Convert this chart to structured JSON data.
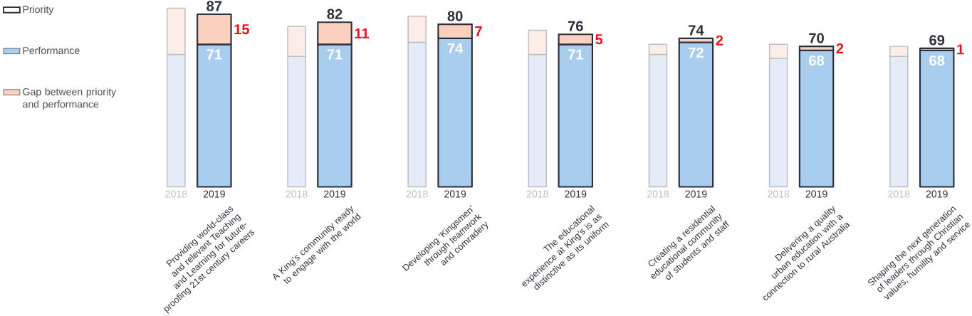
{
  "chart_data": {
    "type": "bar",
    "stacked": true,
    "categories": [
      "2018",
      "2019",
      "2018",
      "2019",
      "2018",
      "2019",
      "2018",
      "2019",
      "2018",
      "2019",
      "2018",
      "2019",
      "2018",
      "2019"
    ],
    "series": [
      {
        "name": "Performance",
        "colors": [
          "#e4ecf7",
          "#a8cdee",
          "#e4ecf7",
          "#a8cdee",
          "#e4ecf7",
          "#a8cdee",
          "#e4ecf7",
          "#a8cdee",
          "#e4ecf7",
          "#a8cdee",
          "#e4ecf7",
          "#a8cdee",
          "#e4ecf7",
          "#a8cdee"
        ],
        "values": [
          66,
          71,
          65,
          71,
          72,
          74,
          66,
          71,
          66,
          72,
          64,
          68,
          65,
          68
        ],
        "value_labels": [
          null,
          "71",
          null,
          "71",
          null,
          "74",
          null,
          "71",
          null,
          "72",
          null,
          "68",
          null,
          "68"
        ]
      },
      {
        "name": "Gap between priority and performance",
        "colors": [
          "#fdede7",
          "#fbd0bf",
          "#fdede7",
          "#fbd0bf",
          "#fdede7",
          "#fbd0bf",
          "#fdede7",
          "#fbd0bf",
          "#fdede7",
          "#fbd0bf",
          "#fdede7",
          "#fbd0bf",
          "#fdede7",
          "#fbd0bf"
        ],
        "values": [
          23,
          15,
          15,
          11,
          13,
          7,
          12,
          5,
          5,
          2,
          7,
          2,
          5,
          1
        ],
        "value_labels": [
          null,
          "15",
          null,
          "11",
          null,
          "7",
          null,
          "5",
          null,
          "2",
          null,
          "2",
          null,
          "1"
        ]
      }
    ],
    "totals": [
      null,
      "87",
      null,
      "82",
      null,
      "80",
      null,
      "76",
      null,
      "74",
      null,
      "70",
      null,
      "69"
    ],
    "annotations": [
      "Providing world-class and relevant Teaching and Learning for future-proofing 21st century careers",
      "A King’s community ready to engage with the world",
      "Developing ‘Kingsmen’ through teamwork and comradery",
      "The educational experience at King’s is as distinctive as its uniform",
      "Creating a residential educational community of students and staff",
      "Delivering a quality urban education with a connection to rural Australia",
      "Shaping the next generation of leaders through Christian values, humility and service",
      "Priority"
    ],
    "legend": "left"
  }
}
